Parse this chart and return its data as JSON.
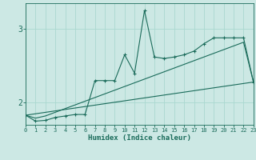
{
  "title": "",
  "xlabel": "Humidex (Indice chaleur)",
  "background_color": "#cce8e4",
  "line_color": "#1a6b5a",
  "grid_color": "#aad8d0",
  "xlim": [
    0,
    23
  ],
  "ylim": [
    1.7,
    3.35
  ],
  "xticks": [
    0,
    1,
    2,
    3,
    4,
    5,
    6,
    7,
    8,
    9,
    10,
    11,
    12,
    13,
    14,
    15,
    16,
    17,
    18,
    19,
    20,
    21,
    22,
    23
  ],
  "yticks": [
    2.0,
    3.0
  ],
  "series1_x": [
    0,
    1,
    2,
    3,
    4,
    5,
    6,
    7,
    8,
    9,
    10,
    11,
    12,
    13,
    14,
    15,
    16,
    17,
    18,
    19,
    20,
    21,
    22,
    23
  ],
  "series1_y": [
    1.83,
    1.75,
    1.76,
    1.8,
    1.82,
    1.84,
    1.84,
    2.3,
    2.3,
    2.3,
    2.65,
    2.4,
    3.25,
    2.62,
    2.6,
    2.62,
    2.65,
    2.7,
    2.8,
    2.88,
    2.88,
    2.88,
    2.88,
    2.28
  ],
  "series2_x": [
    0,
    1,
    2,
    3,
    4,
    5,
    6,
    7,
    8,
    9,
    10,
    11,
    12,
    13,
    14,
    15,
    16,
    17,
    18,
    19,
    20,
    21,
    22,
    23
  ],
  "series2_y": [
    1.83,
    1.79,
    1.82,
    1.87,
    1.92,
    1.97,
    2.02,
    2.07,
    2.12,
    2.17,
    2.22,
    2.27,
    2.32,
    2.37,
    2.42,
    2.47,
    2.52,
    2.57,
    2.62,
    2.67,
    2.72,
    2.77,
    2.82,
    2.28
  ],
  "series3_x": [
    0,
    23
  ],
  "series3_y": [
    1.83,
    2.28
  ]
}
